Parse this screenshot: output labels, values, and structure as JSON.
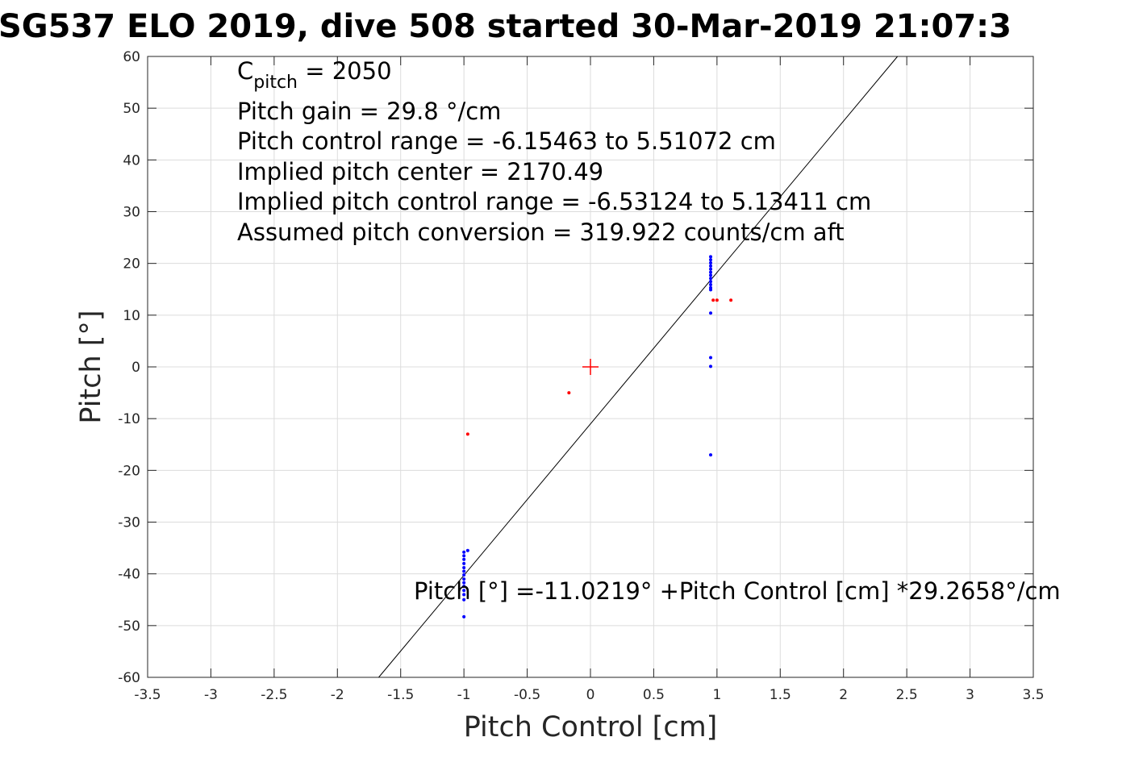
{
  "chart_data": {
    "type": "scatter",
    "title": "SG537 ELO 2019, dive 508 started 30-Mar-2019 21:07:3",
    "xlabel": "Pitch Control [cm]",
    "ylabel": "Pitch [°]",
    "xlim": [
      -3.5,
      3.5
    ],
    "ylim": [
      -60,
      60
    ],
    "x_ticks": [
      -3.5,
      -3,
      -2.5,
      -2,
      -1.5,
      -1,
      -0.5,
      0,
      0.5,
      1,
      1.5,
      2,
      2.5,
      3,
      3.5
    ],
    "x_tick_labels": [
      "-3.5",
      "-3",
      "-2.5",
      "-2",
      "-1.5",
      "-1",
      "-0.5",
      "0",
      "0.5",
      "1",
      "1.5",
      "2",
      "2.5",
      "3",
      "3.5"
    ],
    "y_ticks": [
      -60,
      -50,
      -40,
      -30,
      -20,
      -10,
      0,
      10,
      20,
      30,
      40,
      50,
      60
    ],
    "y_tick_labels": [
      "-60",
      "-50",
      "-40",
      "-30",
      "-20",
      "-10",
      "0",
      "10",
      "20",
      "30",
      "40",
      "50",
      "60"
    ],
    "grid": true,
    "series": [
      {
        "color": "#0000ff",
        "points": [
          [
            -1.0,
            -35.8
          ],
          [
            -1.0,
            -36.5
          ],
          [
            -1.0,
            -37.2
          ],
          [
            -1.0,
            -38.0
          ],
          [
            -1.0,
            -38.8
          ],
          [
            -1.0,
            -39.5
          ],
          [
            -1.0,
            -40.2
          ],
          [
            -1.0,
            -41.0
          ],
          [
            -1.0,
            -41.7
          ],
          [
            -1.0,
            -42.4
          ],
          [
            -1.0,
            -43.2
          ],
          [
            -1.0,
            -44.0
          ],
          [
            -1.0,
            -45.0
          ],
          [
            -0.97,
            -35.5
          ],
          [
            -1.0,
            -48.3
          ],
          [
            0.95,
            21.3
          ],
          [
            0.95,
            20.7
          ],
          [
            0.95,
            20.1
          ],
          [
            0.95,
            19.5
          ],
          [
            0.95,
            18.9
          ],
          [
            0.95,
            18.3
          ],
          [
            0.95,
            17.7
          ],
          [
            0.95,
            17.1
          ],
          [
            0.95,
            16.5
          ],
          [
            0.95,
            15.9
          ],
          [
            0.95,
            15.3
          ],
          [
            0.95,
            14.9
          ],
          [
            0.95,
            10.4
          ],
          [
            0.95,
            1.8
          ],
          [
            0.95,
            0.1
          ],
          [
            0.95,
            -17.0
          ]
        ]
      },
      {
        "color": "#ff0000",
        "points": [
          [
            -0.97,
            -13.0
          ],
          [
            -0.17,
            -5.0
          ],
          [
            0.97,
            12.9
          ],
          [
            1.0,
            12.9
          ],
          [
            1.11,
            12.9
          ]
        ]
      }
    ],
    "center_marker": {
      "x": 0,
      "y": 0,
      "color": "#ff0000"
    },
    "fit_line": {
      "intercept": -11.0219,
      "slope": 29.2658,
      "color": "#000000"
    },
    "annotations": {
      "cpitch_main": "C",
      "cpitch_sub": "pitch",
      "cpitch_value": " = 2050",
      "pitch_gain": "Pitch gain = 29.8 °/cm",
      "control_range": "Pitch control range = -6.15463 to 5.51072 cm",
      "implied_center": "Implied pitch center = 2170.49",
      "implied_range": "Implied pitch control range = -6.53124 to 5.13411 cm",
      "conversion": "Assumed pitch conversion = 319.922 counts/cm aft",
      "fit_equation": "Pitch [°] =-11.0219° +Pitch Control [cm] *29.2658°/cm"
    }
  }
}
